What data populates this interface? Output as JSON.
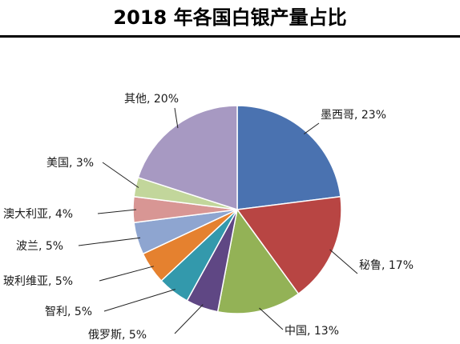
{
  "chart_data": {
    "type": "pie",
    "title": "2018 年各国白银产量占比",
    "slices": [
      {
        "name": "墨西哥",
        "value": 23,
        "label": "墨西哥, 23%",
        "color": "#4A72B0"
      },
      {
        "name": "秘鲁",
        "value": 17,
        "label": "秘鲁, 17%",
        "color": "#B84543"
      },
      {
        "name": "中国",
        "value": 13,
        "label": "中国, 13%",
        "color": "#93B256"
      },
      {
        "name": "俄罗斯",
        "value": 5,
        "label": "俄罗斯, 5%",
        "color": "#5F4784"
      },
      {
        "name": "智利",
        "value": 5,
        "label": "智利, 5%",
        "color": "#3399AC"
      },
      {
        "name": "玻利维亚",
        "value": 5,
        "label": "玻利维亚, 5%",
        "color": "#E5812F"
      },
      {
        "name": "波兰",
        "value": 5,
        "label": "波兰, 5%",
        "color": "#8EA5D0"
      },
      {
        "name": "澳大利亚",
        "value": 4,
        "label": "澳大利亚, 4%",
        "color": "#D89694"
      },
      {
        "name": "美国",
        "value": 3,
        "label": "美国, 3%",
        "color": "#C2D69B"
      },
      {
        "name": "其他",
        "value": 20,
        "label": "其他, 20%",
        "color": "#A799C2"
      }
    ],
    "start_angle": "12 o'clock",
    "direction": "clockwise",
    "legend": "none"
  }
}
